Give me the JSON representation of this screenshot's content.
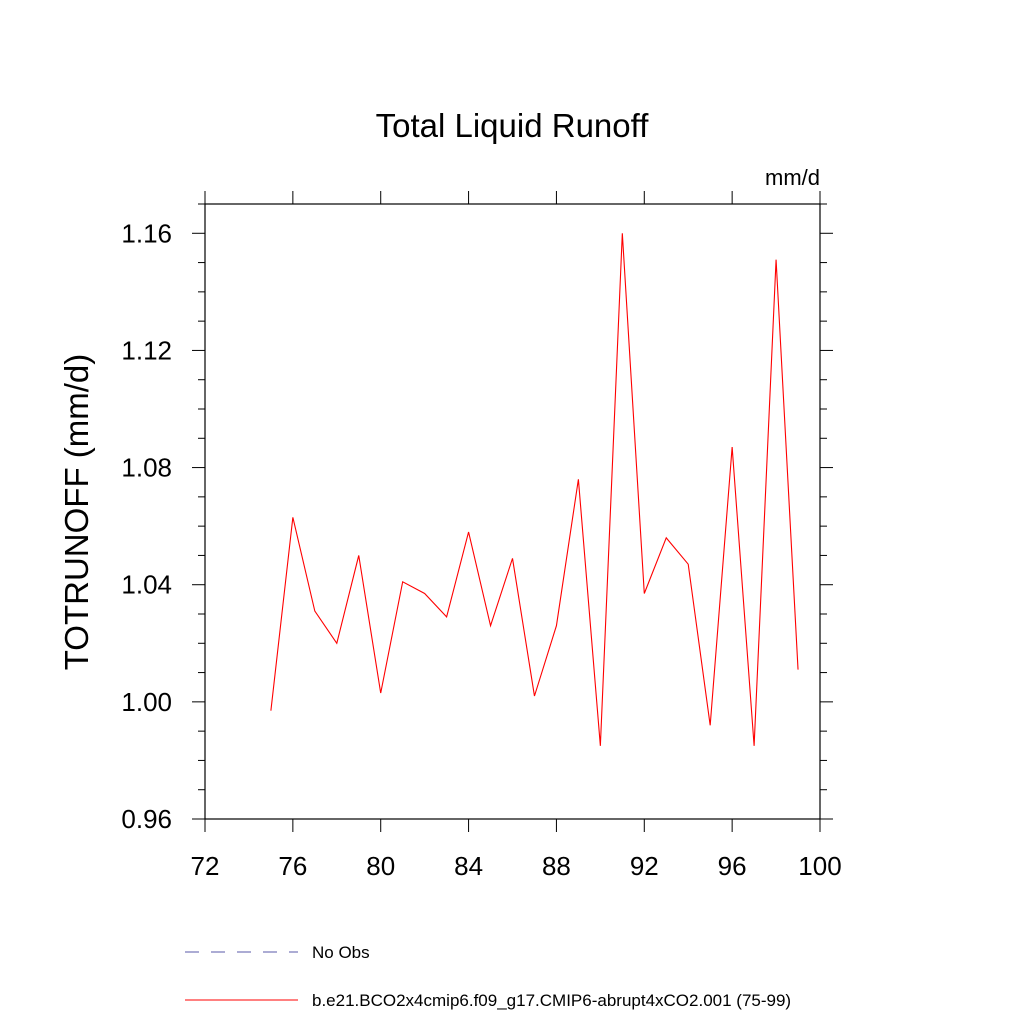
{
  "chart_data": {
    "type": "line",
    "title": "Total Liquid Runoff",
    "units_label": "mm/d",
    "ylabel": "TOTRUNOFF  (mm/d)",
    "xlabel": "",
    "xlim": [
      72,
      100
    ],
    "ylim": [
      0.96,
      1.17
    ],
    "x_ticks": [
      72,
      76,
      80,
      84,
      88,
      92,
      96,
      100
    ],
    "x_tick_labels": [
      "72",
      "76",
      "80",
      "84",
      "88",
      "92",
      "96",
      "100"
    ],
    "y_ticks": [
      0.96,
      1.0,
      1.04,
      1.08,
      1.12,
      1.16
    ],
    "y_tick_labels": [
      "0.96",
      "1.00",
      "1.04",
      "1.08",
      "1.12",
      "1.16"
    ],
    "grid": false,
    "legend_position": "bottom",
    "series": [
      {
        "name": "b.e21.BCO2x4cmip6.f09_g17.CMIP6-abrupt4xCO2.001 (75-99)",
        "color": "#ff0000",
        "style": "solid",
        "x": [
          75,
          76,
          77,
          78,
          79,
          80,
          81,
          82,
          83,
          84,
          85,
          86,
          87,
          88,
          89,
          90,
          91,
          92,
          93,
          94,
          95,
          96,
          97,
          98,
          99
        ],
        "y": [
          0.997,
          1.063,
          1.031,
          1.02,
          1.05,
          1.003,
          1.041,
          1.037,
          1.029,
          1.058,
          1.026,
          1.049,
          1.002,
          1.026,
          1.076,
          0.985,
          1.16,
          1.037,
          1.056,
          1.047,
          0.992,
          1.087,
          0.985,
          1.151,
          1.011
        ]
      }
    ],
    "legend": [
      {
        "label": "No Obs",
        "color": "#5a5aa8",
        "style": "dashed"
      },
      {
        "label": "b.e21.BCO2x4cmip6.f09_g17.CMIP6-abrupt4xCO2.001 (75-99)",
        "color": "#ff0000",
        "style": "solid"
      }
    ]
  }
}
